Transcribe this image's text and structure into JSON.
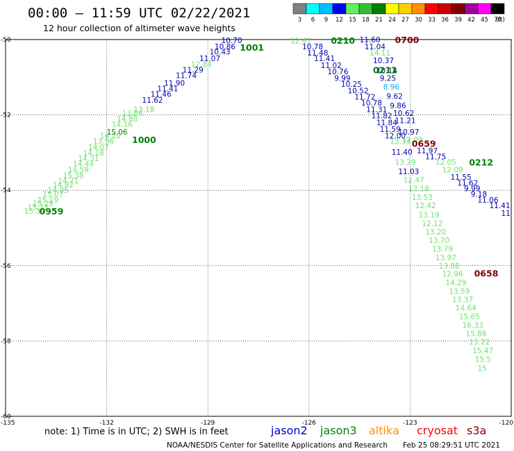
{
  "title": "00:00 – 11:59 UTC 02/22/2021",
  "subtitle": "12 hour collection of altimeter wave heights",
  "colorbar": {
    "bins": [
      {
        "label": "3",
        "color": "#808080"
      },
      {
        "label": "6",
        "color": "#00ffff"
      },
      {
        "label": "9",
        "color": "#00c0ff"
      },
      {
        "label": "12",
        "color": "#0000ff"
      },
      {
        "label": "15",
        "color": "#60f060"
      },
      {
        "label": "18",
        "color": "#30c030"
      },
      {
        "label": "21",
        "color": "#008000"
      },
      {
        "label": "24",
        "color": "#ffff00"
      },
      {
        "label": "27",
        "color": "#ffd000"
      },
      {
        "label": "30",
        "color": "#ff9000"
      },
      {
        "label": "33",
        "color": "#ff0000"
      },
      {
        "label": "36",
        "color": "#d00000"
      },
      {
        "label": "39",
        "color": "#800000"
      },
      {
        "label": "42",
        "color": "#a000a0"
      },
      {
        "label": "45",
        "color": "#ff00ff"
      },
      {
        "label": "70",
        "color": "#000000"
      }
    ],
    "unit": "(ft)"
  },
  "axes": {
    "lon_min": -135,
    "lon_max": -120,
    "lat_min": -60,
    "lat_max": -50,
    "lon_ticks": [
      -135,
      -132,
      -129,
      -126,
      -123,
      -120
    ],
    "lon_tick_labels": [
      "-135",
      "-132",
      "-129",
      "-126",
      "-123",
      "-120"
    ],
    "lat_ticks": [
      -50,
      -52,
      -54,
      -56,
      -58,
      -60
    ],
    "lat_tick_labels": [
      "-50",
      "-52",
      "-54",
      "-56",
      "-58",
      "-60"
    ]
  },
  "colors": {
    "jason2": "#0000b0",
    "jason3": "#008000",
    "light": "#70e070",
    "lightblue": "#00b0ff",
    "cryosat": "#800000",
    "altika": "#ff9000",
    "s3a_red": "#ff0000",
    "s3a_dark": "#800000"
  },
  "timestamps": [
    {
      "text": "0959",
      "lon": -134.0,
      "lat": -54.55,
      "color": "jason3"
    },
    {
      "text": "1000",
      "lon": -131.25,
      "lat": -52.65,
      "color": "jason3"
    },
    {
      "text": "1001",
      "lon": -128.05,
      "lat": -50.2,
      "color": "jason3"
    },
    {
      "text": "0210",
      "lon": -125.35,
      "lat": -50.02,
      "color": "jason3"
    },
    {
      "text": "0700",
      "lon": -123.45,
      "lat": -50.0,
      "color": "cryosat"
    },
    {
      "text": "0211",
      "lon": -124.1,
      "lat": -50.8,
      "color": "jason3"
    },
    {
      "text": "0659",
      "lon": -122.95,
      "lat": -52.75,
      "color": "cryosat"
    },
    {
      "text": "0212",
      "lon": -121.25,
      "lat": -53.25,
      "color": "jason3"
    },
    {
      "text": "0658",
      "lon": -121.1,
      "lat": -56.2,
      "color": "cryosat"
    }
  ],
  "tracks": {
    "track_a": [
      {
        "t": "15.34",
        "lon": -134.45,
        "lat": -54.55,
        "c": "light"
      },
      {
        "t": "15.33",
        "lon": -134.35,
        "lat": -54.45,
        "c": "light"
      },
      {
        "t": "15.28",
        "lon": -134.2,
        "lat": -54.35,
        "c": "light"
      },
      {
        "t": "15.19",
        "lon": -134.05,
        "lat": -54.25,
        "c": "light"
      },
      {
        "t": "15.07",
        "lon": -133.9,
        "lat": -54.1,
        "c": "light"
      },
      {
        "t": "14.95",
        "lon": -133.75,
        "lat": -54.0,
        "c": "light"
      },
      {
        "t": "14.82",
        "lon": -133.6,
        "lat": -53.85,
        "c": "light"
      },
      {
        "t": "14.71",
        "lon": -133.45,
        "lat": -53.75,
        "c": "light"
      },
      {
        "t": "15.38",
        "lon": -133.3,
        "lat": -53.6,
        "c": "light"
      },
      {
        "t": "14.59",
        "lon": -133.15,
        "lat": -53.45,
        "c": "light"
      },
      {
        "t": "14.44",
        "lon": -133.0,
        "lat": -53.3,
        "c": "light"
      },
      {
        "t": "14.31",
        "lon": -132.85,
        "lat": -53.15,
        "c": "light"
      },
      {
        "t": "14.18",
        "lon": -132.7,
        "lat": -53.0,
        "c": "light"
      },
      {
        "t": "14.07",
        "lon": -132.55,
        "lat": -52.85,
        "c": "light"
      },
      {
        "t": "13.96",
        "lon": -132.4,
        "lat": -52.7,
        "c": "light"
      },
      {
        "t": "14.20",
        "lon": -132.2,
        "lat": -52.55,
        "c": "light"
      },
      {
        "t": "15.06",
        "lon": -132.0,
        "lat": -52.45,
        "c": "jason3"
      },
      {
        "t": "14.16",
        "lon": -131.85,
        "lat": -52.25,
        "c": "light"
      },
      {
        "t": "14.88",
        "lon": -131.7,
        "lat": -52.1,
        "c": "light"
      },
      {
        "t": "13.86",
        "lon": -131.55,
        "lat": -51.95,
        "c": "light"
      },
      {
        "t": "13.18",
        "lon": -131.2,
        "lat": -51.85,
        "c": "light"
      },
      {
        "t": "11.62",
        "lon": -130.95,
        "lat": -51.6,
        "c": "jason2"
      },
      {
        "t": "11.46",
        "lon": -130.7,
        "lat": -51.45,
        "c": "jason2"
      },
      {
        "t": "11.41",
        "lon": -130.5,
        "lat": -51.3,
        "c": "jason2"
      },
      {
        "t": "11.90",
        "lon": -130.3,
        "lat": -51.15,
        "c": "jason2"
      },
      {
        "t": "11.74",
        "lon": -129.95,
        "lat": -50.95,
        "c": "jason2"
      },
      {
        "t": "11.29",
        "lon": -129.75,
        "lat": -50.8,
        "c": "jason2"
      },
      {
        "t": "12.84",
        "lon": -129.5,
        "lat": -50.65,
        "c": "light"
      },
      {
        "t": "11.07",
        "lon": -129.25,
        "lat": -50.5,
        "c": "jason2"
      },
      {
        "t": "10.43",
        "lon": -128.95,
        "lat": -50.32,
        "c": "jason2"
      },
      {
        "t": "10.86",
        "lon": -128.8,
        "lat": -50.18,
        "c": "jason2"
      },
      {
        "t": "10.70",
        "lon": -128.6,
        "lat": -50.02,
        "c": "jason2"
      }
    ],
    "track_b": [
      {
        "t": "12.41",
        "lon": -126.55,
        "lat": -50.03,
        "c": "light"
      },
      {
        "t": "10.78",
        "lon": -126.2,
        "lat": -50.18,
        "c": "jason2"
      },
      {
        "t": "11.48",
        "lon": -126.05,
        "lat": -50.35,
        "c": "jason2"
      },
      {
        "t": "11.41",
        "lon": -125.85,
        "lat": -50.5,
        "c": "jason2"
      },
      {
        "t": "11.02",
        "lon": -125.65,
        "lat": -50.68,
        "c": "jason2"
      },
      {
        "t": "10.76",
        "lon": -125.45,
        "lat": -50.85,
        "c": "jason2"
      },
      {
        "t": "9.99",
        "lon": -125.25,
        "lat": -51.02,
        "c": "jason2"
      },
      {
        "t": "10.25",
        "lon": -125.05,
        "lat": -51.18,
        "c": "jason2"
      },
      {
        "t": "10.52",
        "lon": -124.85,
        "lat": -51.35,
        "c": "jason2"
      },
      {
        "t": "11.72",
        "lon": -124.65,
        "lat": -51.52,
        "c": "jason2"
      },
      {
        "t": "10.78",
        "lon": -124.45,
        "lat": -51.68,
        "c": "jason2"
      },
      {
        "t": "11.31",
        "lon": -124.3,
        "lat": -51.85,
        "c": "jason2"
      },
      {
        "t": "11.82",
        "lon": -124.15,
        "lat": -52.02,
        "c": "jason2"
      },
      {
        "t": "11.84",
        "lon": -124.0,
        "lat": -52.2,
        "c": "jason2"
      },
      {
        "t": "11.59",
        "lon": -123.9,
        "lat": -52.38,
        "c": "jason2"
      },
      {
        "t": "12.00",
        "lon": -123.75,
        "lat": -52.55,
        "c": "jason2"
      },
      {
        "t": "13.33",
        "lon": -123.6,
        "lat": -52.7,
        "c": "light"
      },
      {
        "t": "11.40",
        "lon": -123.55,
        "lat": -52.98,
        "c": "jason2"
      },
      {
        "t": "13.29",
        "lon": -123.45,
        "lat": -53.25,
        "c": "light"
      },
      {
        "t": "11.03",
        "lon": -123.35,
        "lat": -53.5,
        "c": "jason2"
      },
      {
        "t": "12.47",
        "lon": -123.2,
        "lat": -53.72,
        "c": "light"
      },
      {
        "t": "12.18",
        "lon": -123.05,
        "lat": -53.95,
        "c": "light"
      },
      {
        "t": "13.53",
        "lon": -122.95,
        "lat": -54.18,
        "c": "light"
      },
      {
        "t": "12.42",
        "lon": -122.85,
        "lat": -54.4,
        "c": "light"
      },
      {
        "t": "13.19",
        "lon": -122.75,
        "lat": -54.65,
        "c": "light"
      },
      {
        "t": "12.12",
        "lon": -122.65,
        "lat": -54.88,
        "c": "light"
      },
      {
        "t": "13.20",
        "lon": -122.55,
        "lat": -55.1,
        "c": "light"
      },
      {
        "t": "13.70",
        "lon": -122.45,
        "lat": -55.32,
        "c": "light"
      },
      {
        "t": "13.79",
        "lon": -122.35,
        "lat": -55.55,
        "c": "light"
      },
      {
        "t": "13.97",
        "lon": -122.25,
        "lat": -55.78,
        "c": "light"
      },
      {
        "t": "13.88",
        "lon": -122.15,
        "lat": -56.0,
        "c": "light"
      },
      {
        "t": "12.96",
        "lon": -122.05,
        "lat": -56.22,
        "c": "light"
      },
      {
        "t": "14.29",
        "lon": -121.95,
        "lat": -56.45,
        "c": "light"
      },
      {
        "t": "13.59",
        "lon": -121.85,
        "lat": -56.68,
        "c": "light"
      },
      {
        "t": "13.37",
        "lon": -121.75,
        "lat": -56.9,
        "c": "light"
      },
      {
        "t": "14.64",
        "lon": -121.65,
        "lat": -57.12,
        "c": "light"
      },
      {
        "t": "15.65",
        "lon": -121.55,
        "lat": -57.35,
        "c": "light"
      },
      {
        "t": "16.33",
        "lon": -121.45,
        "lat": -57.58,
        "c": "light"
      },
      {
        "t": "15.86",
        "lon": -121.35,
        "lat": -57.8,
        "c": "light"
      },
      {
        "t": "15.22",
        "lon": -121.25,
        "lat": -58.02,
        "c": "light"
      },
      {
        "t": "15.47",
        "lon": -121.15,
        "lat": -58.25,
        "c": "light"
      },
      {
        "t": "15.5",
        "lon": -121.08,
        "lat": -58.48,
        "c": "light"
      },
      {
        "t": "15",
        "lon": -121.0,
        "lat": -58.72,
        "c": "light"
      }
    ],
    "track_c": [
      {
        "t": "11.60",
        "lon": -124.5,
        "lat": -50.0,
        "c": "jason2"
      },
      {
        "t": "11.04",
        "lon": -124.35,
        "lat": -50.18,
        "c": "jason2"
      },
      {
        "t": "14.11",
        "lon": -124.2,
        "lat": -50.35,
        "c": "light"
      },
      {
        "t": "10.37",
        "lon": -124.1,
        "lat": -50.55,
        "c": "jason2"
      },
      {
        "t": "10.14",
        "lon": -124.0,
        "lat": -50.82,
        "c": "jason2"
      },
      {
        "t": "9.25",
        "lon": -123.9,
        "lat": -51.02,
        "c": "jason2"
      },
      {
        "t": "8.96",
        "lon": -123.8,
        "lat": -51.25,
        "c": "lightblue"
      },
      {
        "t": "9.62",
        "lon": -123.7,
        "lat": -51.5,
        "c": "jason2"
      },
      {
        "t": "9.86",
        "lon": -123.6,
        "lat": -51.75,
        "c": "jason2"
      },
      {
        "t": "10.62",
        "lon": -123.5,
        "lat": -51.95,
        "c": "jason2"
      },
      {
        "t": "11.21",
        "lon": -123.45,
        "lat": -52.15,
        "c": "jason2"
      },
      {
        "t": "10.97",
        "lon": -123.35,
        "lat": -52.45,
        "c": "jason2"
      },
      {
        "t": "12.09",
        "lon": -123.25,
        "lat": -52.65,
        "c": "light"
      },
      {
        "t": "11.97",
        "lon": -122.8,
        "lat": -52.95,
        "c": "jason2"
      },
      {
        "t": "11.75",
        "lon": -122.55,
        "lat": -53.1,
        "c": "jason2"
      },
      {
        "t": "12.05",
        "lon": -122.25,
        "lat": -53.25,
        "c": "light"
      },
      {
        "t": "12.09",
        "lon": -122.05,
        "lat": -53.45,
        "c": "light"
      },
      {
        "t": "11.55",
        "lon": -121.8,
        "lat": -53.65,
        "c": "jason2"
      },
      {
        "t": "11.62",
        "lon": -121.6,
        "lat": -53.8,
        "c": "jason2"
      },
      {
        "t": "9.99",
        "lon": -121.4,
        "lat": -53.95,
        "c": "jason2"
      },
      {
        "t": "9.18",
        "lon": -121.2,
        "lat": -54.1,
        "c": "jason2"
      },
      {
        "t": "11.06",
        "lon": -121.0,
        "lat": -54.25,
        "c": "jason2"
      },
      {
        "t": "11.41",
        "lon": -120.65,
        "lat": -54.4,
        "c": "jason2"
      },
      {
        "t": "11",
        "lon": -120.3,
        "lat": -54.6,
        "c": "jason2"
      }
    ]
  },
  "note": "note:  1) Time is in UTC;  2) SWH is in feet",
  "satellites": [
    {
      "name": "jason2",
      "color": "#0000d0"
    },
    {
      "name": "jason3",
      "color": "#008000"
    },
    {
      "name": "altika",
      "color": "#ff9000"
    },
    {
      "name": "cryosat",
      "color": "#ff0000"
    },
    {
      "name": "s3a",
      "color": "#800000"
    }
  ],
  "credit": "NOAA/NESDIS Center for Satellite Applications and Research",
  "generated": "Feb 25 08:29:51 UTC 2021"
}
